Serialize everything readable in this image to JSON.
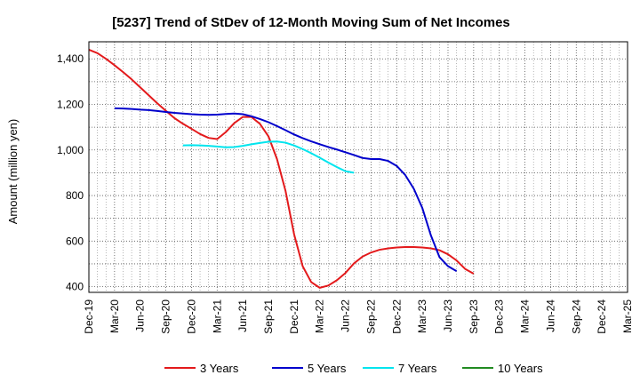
{
  "chart_data": {
    "type": "line",
    "title": "[5237]  Trend of StDev of 12-Month Moving Sum of Net Incomes",
    "xlabel": "",
    "ylabel": "Amount (million yen)",
    "ylim": [
      375,
      1475
    ],
    "yticks": [
      400,
      600,
      800,
      1000,
      1200,
      1400
    ],
    "ytick_labels": [
      "400",
      "600",
      "800",
      "1,000",
      "1,200",
      "1,400"
    ],
    "x_tick_labels": [
      "Dec-19",
      "Mar-20",
      "Jun-20",
      "Sep-20",
      "Dec-20",
      "Mar-21",
      "Jun-21",
      "Sep-21",
      "Dec-21",
      "Mar-22",
      "Jun-22",
      "Sep-22",
      "Dec-22",
      "Mar-23",
      "Jun-23",
      "Sep-23",
      "Dec-23",
      "Mar-24",
      "Jun-24",
      "Sep-24",
      "Dec-24",
      "Mar-25"
    ],
    "grid": true,
    "legend_position": "bottom",
    "series": [
      {
        "name": "3 Years",
        "color": "#e31a1c",
        "points": [
          [
            0,
            1440
          ],
          [
            1,
            1425
          ],
          [
            2,
            1400
          ],
          [
            3,
            1372
          ],
          [
            4,
            1342
          ],
          [
            5,
            1310
          ],
          [
            6,
            1275
          ],
          [
            7,
            1240
          ],
          [
            8,
            1205
          ],
          [
            9,
            1172
          ],
          [
            10,
            1140
          ],
          [
            11,
            1115
          ],
          [
            12,
            1093
          ],
          [
            13,
            1070
          ],
          [
            14,
            1053
          ],
          [
            15,
            1048
          ],
          [
            16,
            1078
          ],
          [
            17,
            1118
          ],
          [
            18,
            1145
          ],
          [
            19,
            1145
          ],
          [
            20,
            1115
          ],
          [
            21,
            1060
          ],
          [
            22,
            960
          ],
          [
            23,
            820
          ],
          [
            24,
            630
          ],
          [
            25,
            490
          ],
          [
            26,
            420
          ],
          [
            27,
            395
          ],
          [
            28,
            405
          ],
          [
            29,
            428
          ],
          [
            30,
            460
          ],
          [
            31,
            502
          ],
          [
            32,
            532
          ],
          [
            33,
            550
          ],
          [
            34,
            562
          ],
          [
            35,
            568
          ],
          [
            36,
            572
          ],
          [
            37,
            574
          ],
          [
            38,
            574
          ],
          [
            39,
            572
          ],
          [
            40,
            568
          ],
          [
            41,
            560
          ],
          [
            42,
            542
          ],
          [
            43,
            515
          ],
          [
            44,
            478
          ],
          [
            45,
            457
          ]
        ]
      },
      {
        "name": "5 Years",
        "color": "#0000cc",
        "points": [
          [
            3,
            1183
          ],
          [
            4,
            1182
          ],
          [
            5,
            1180
          ],
          [
            6,
            1177
          ],
          [
            7,
            1175
          ],
          [
            8,
            1171
          ],
          [
            9,
            1167
          ],
          [
            10,
            1163
          ],
          [
            11,
            1160
          ],
          [
            12,
            1157
          ],
          [
            13,
            1155
          ],
          [
            14,
            1154
          ],
          [
            15,
            1155
          ],
          [
            16,
            1158
          ],
          [
            17,
            1160
          ],
          [
            18,
            1157
          ],
          [
            19,
            1148
          ],
          [
            20,
            1136
          ],
          [
            21,
            1122
          ],
          [
            22,
            1105
          ],
          [
            23,
            1087
          ],
          [
            24,
            1068
          ],
          [
            25,
            1052
          ],
          [
            26,
            1038
          ],
          [
            27,
            1025
          ],
          [
            28,
            1013
          ],
          [
            29,
            1002
          ],
          [
            30,
            990
          ],
          [
            31,
            978
          ],
          [
            32,
            965
          ],
          [
            33,
            960
          ],
          [
            34,
            960
          ],
          [
            35,
            952
          ],
          [
            36,
            930
          ],
          [
            37,
            890
          ],
          [
            38,
            830
          ],
          [
            39,
            745
          ],
          [
            40,
            625
          ],
          [
            41,
            530
          ],
          [
            42,
            490
          ],
          [
            43,
            468
          ]
        ]
      },
      {
        "name": "7 Years",
        "color": "#00e5ee",
        "points": [
          [
            11,
            1020
          ],
          [
            12,
            1021
          ],
          [
            13,
            1020
          ],
          [
            14,
            1018
          ],
          [
            15,
            1015
          ],
          [
            16,
            1012
          ],
          [
            17,
            1013
          ],
          [
            18,
            1018
          ],
          [
            19,
            1025
          ],
          [
            20,
            1031
          ],
          [
            21,
            1036
          ],
          [
            22,
            1037
          ],
          [
            23,
            1032
          ],
          [
            24,
            1020
          ],
          [
            25,
            1004
          ],
          [
            26,
            986
          ],
          [
            27,
            966
          ],
          [
            28,
            945
          ],
          [
            29,
            925
          ],
          [
            30,
            907
          ],
          [
            31,
            900
          ]
        ]
      },
      {
        "name": "10 Years",
        "color": "#228b22",
        "points": []
      }
    ],
    "series_x_start_index": [
      0,
      1,
      3,
      0
    ]
  }
}
